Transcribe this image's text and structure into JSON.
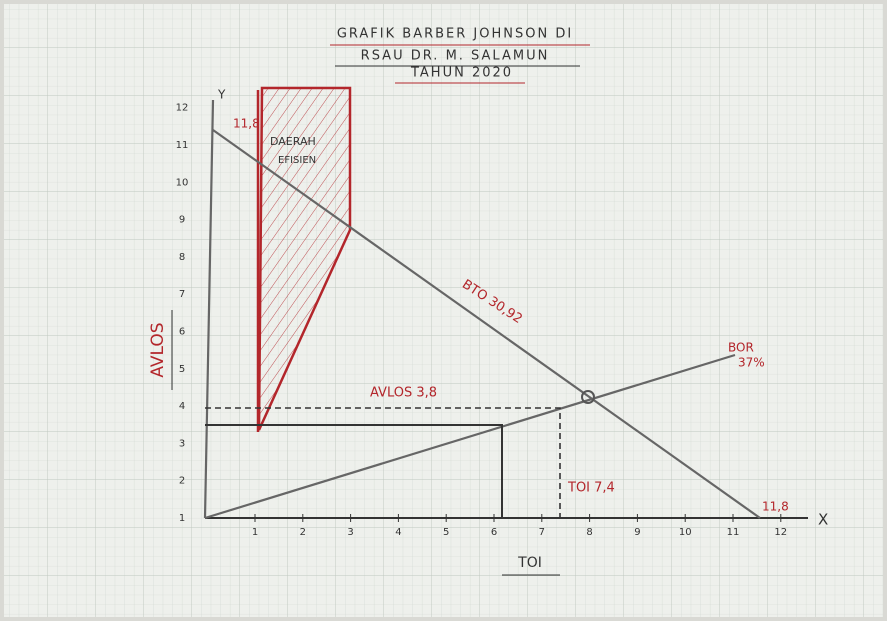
{
  "title": [
    "GRAFIK BARBER JOHNSON DI",
    "RSAU DR. M. SALAMUN",
    "TAHUN 2020"
  ],
  "axes": {
    "x_letter": "X",
    "y_letter": "Y",
    "x_title": "TOI",
    "y_title": "AVLOS",
    "x_ticks": [
      "1",
      "2",
      "3",
      "4",
      "5",
      "6",
      "7",
      "8",
      "9",
      "10",
      "11",
      "12"
    ],
    "y_ticks": [
      "1",
      "2",
      "3",
      "4",
      "5",
      "6",
      "7",
      "8",
      "9",
      "10",
      "11",
      "12"
    ]
  },
  "annotations": {
    "region": [
      "DAERAH",
      "EFISIEN"
    ],
    "bto": "BTO 30,92",
    "bor": [
      "BOR",
      "37%"
    ],
    "avlos": "AVLOS 3,8",
    "toi": "TOI 7,4",
    "y_intercept": "11,8",
    "x_intercept": "11,8"
  }
}
